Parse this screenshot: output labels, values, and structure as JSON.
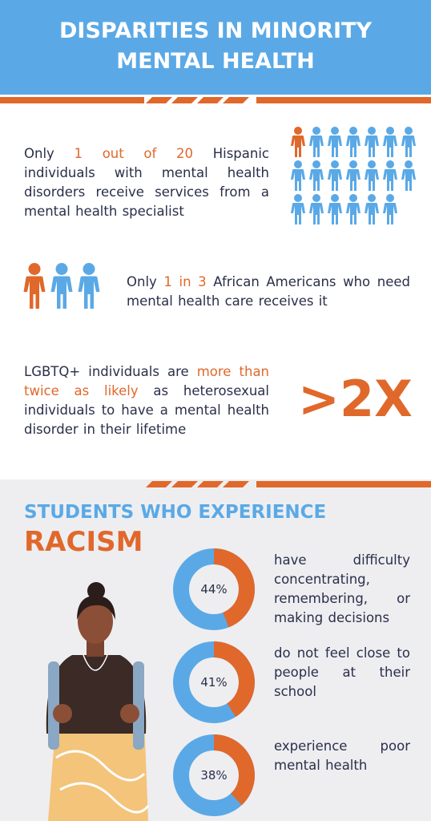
{
  "header": {
    "title_lines": [
      "DISPARITIES IN MINORITY",
      "MENTAL HEALTH"
    ]
  },
  "facts": [
    [
      "Only ",
      "1 out of 20",
      " Hispanic individuals with mental health disorders receive services from a mental health specialist"
    ],
    [
      "Only ",
      "1 in 3",
      " African Americans who need mental health care receives it"
    ],
    [
      "LGBTQ+  individuals are ",
      "more than twice as likely",
      " as heterosexual individuals to have a mental health disorder in their lifetime"
    ]
  ],
  "big_stat": ">2X",
  "section": {
    "title": "STUDENTS WHO EXPERIENCE",
    "emphasis": "RACISM"
  },
  "stats": [
    {
      "value": 44,
      "label": "44%",
      "text": "have difficulty concentrating, remembering, or making decisions"
    },
    {
      "value": 41,
      "label": "41%",
      "text": "do not feel close to people at their school"
    },
    {
      "value": 38,
      "label": "38%",
      "text": "experience poor mental health"
    }
  ]
}
